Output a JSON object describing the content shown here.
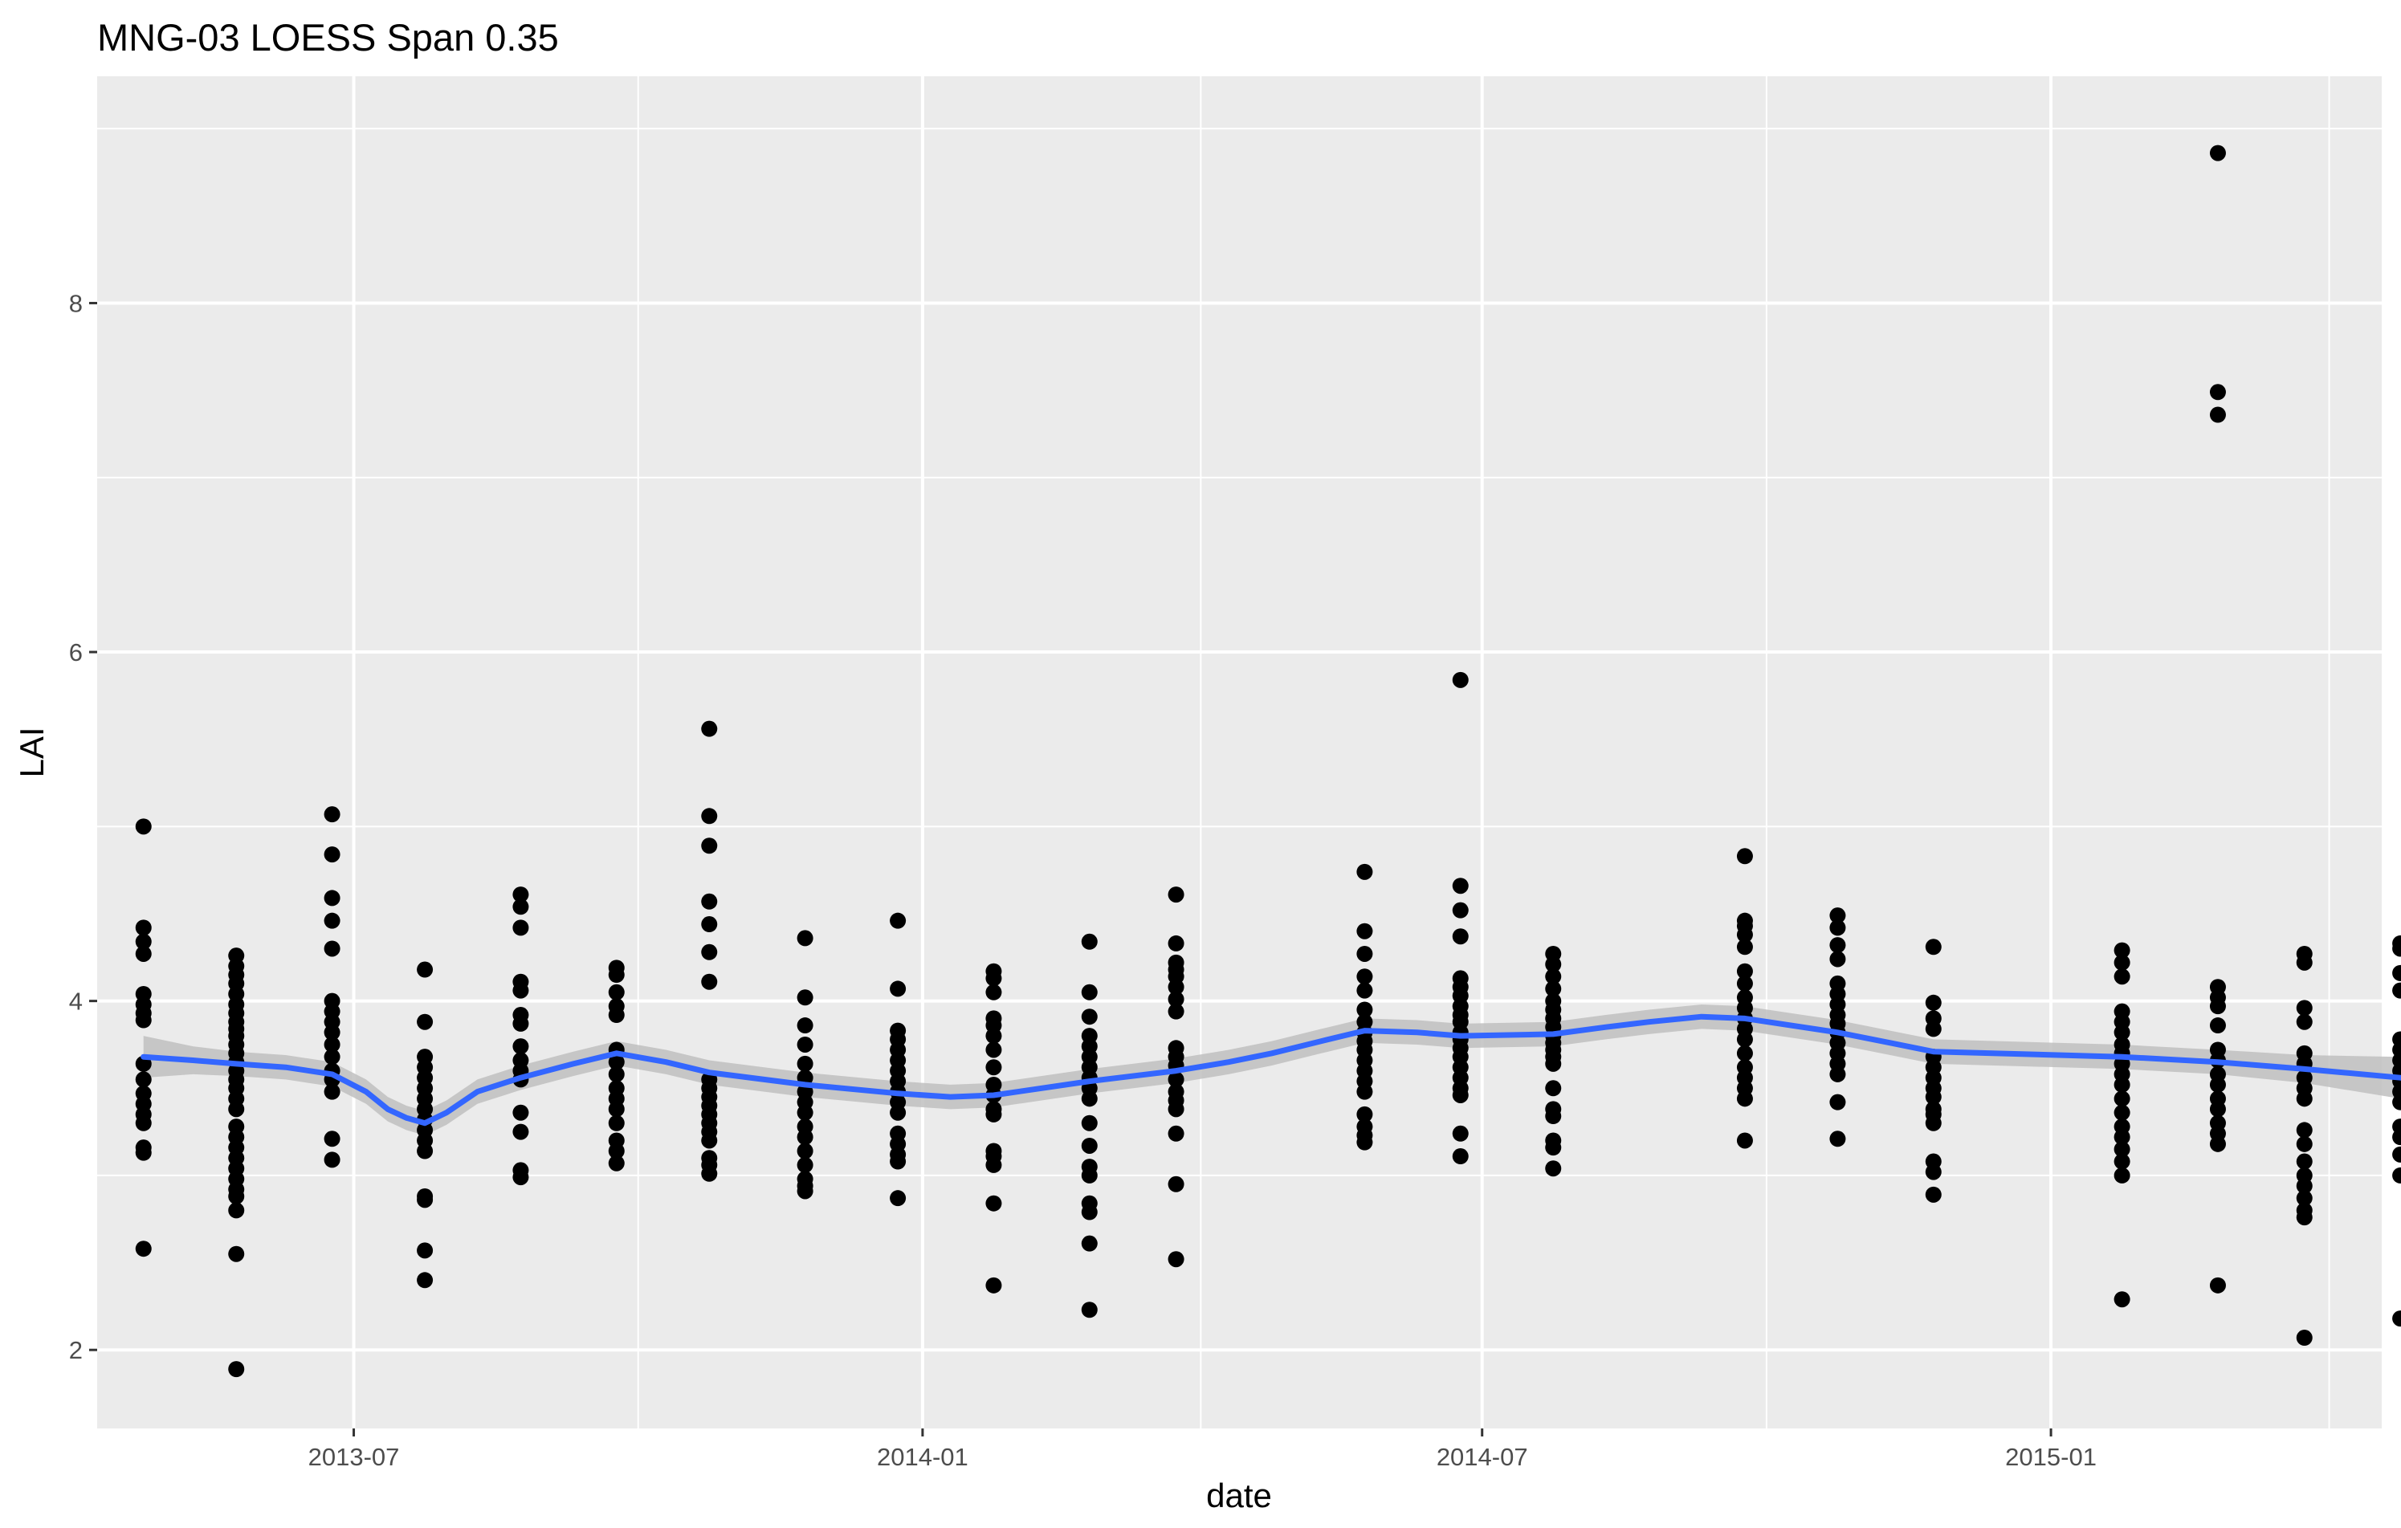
{
  "chart_data": {
    "type": "scatter",
    "title": "MNG-03 LOESS Span 0.35",
    "xlabel": "date",
    "ylabel": "LAI",
    "x_is_date": true,
    "xlim": [
      "2013-04-09",
      "2015-04-18"
    ],
    "ylim": [
      1.55,
      9.3
    ],
    "x_ticks": [
      {
        "value": "2013-07-01",
        "label": "2013-07"
      },
      {
        "value": "2014-01-01",
        "label": "2014-01"
      },
      {
        "value": "2014-07-01",
        "label": "2014-07"
      },
      {
        "value": "2015-01-01",
        "label": "2015-01"
      }
    ],
    "x_minor_ticks": [
      "2013-04-01",
      "2013-10-01",
      "2014-04-01",
      "2014-10-01",
      "2015-04-01"
    ],
    "y_ticks": [
      2,
      4,
      6,
      8
    ],
    "y_minor_ticks": [
      3,
      5,
      7,
      9
    ],
    "grid": true,
    "legend": "none",
    "colors": {
      "panel_background": "#ebebeb",
      "grid_line": "#ffffff",
      "points": "#000000",
      "smooth_line": "#3366ff",
      "confidence_band": "#bfbfbf"
    },
    "series": [
      {
        "kind": "points",
        "points": [
          {
            "x": "2013-04-24",
            "y": [
              5.0,
              4.42,
              4.34,
              4.27,
              4.04,
              3.98,
              3.93,
              3.89,
              3.64,
              3.55,
              3.47,
              3.41,
              3.35,
              3.3,
              3.16,
              3.13,
              2.58
            ]
          },
          {
            "x": "2013-05-24",
            "y": [
              4.26,
              4.2,
              4.15,
              4.1,
              4.04,
              3.98,
              3.93,
              3.88,
              3.84,
              3.8,
              3.75,
              3.7,
              3.65,
              3.6,
              3.55,
              3.5,
              3.44,
              3.38,
              3.28,
              3.22,
              3.16,
              3.1,
              3.04,
              2.98,
              2.92,
              2.88,
              2.8,
              2.55,
              1.89
            ]
          },
          {
            "x": "2013-06-24",
            "y": [
              5.07,
              4.84,
              4.59,
              4.46,
              4.3,
              4.0,
              3.94,
              3.88,
              3.82,
              3.75,
              3.68,
              3.6,
              3.55,
              3.48,
              3.21,
              3.09
            ]
          },
          {
            "x": "2013-07-24",
            "y": [
              4.18,
              3.88,
              3.68,
              3.62,
              3.56,
              3.5,
              3.44,
              3.38,
              3.32,
              3.26,
              3.2,
              3.14,
              2.88,
              2.86,
              2.57,
              2.4
            ]
          },
          {
            "x": "2013-08-24",
            "y": [
              4.61,
              4.54,
              4.42,
              4.11,
              4.06,
              3.92,
              3.87,
              3.74,
              3.66,
              3.6,
              3.55,
              3.36,
              3.25,
              3.03,
              2.99
            ]
          },
          {
            "x": "2013-09-24",
            "y": [
              4.19,
              4.15,
              4.05,
              3.97,
              3.92,
              3.72,
              3.65,
              3.58,
              3.5,
              3.44,
              3.38,
              3.3,
              3.2,
              3.14,
              3.07
            ]
          },
          {
            "x": "2013-10-24",
            "y": [
              5.56,
              5.06,
              4.89,
              4.57,
              4.44,
              4.28,
              4.11,
              3.55,
              3.5,
              3.45,
              3.4,
              3.35,
              3.3,
              3.25,
              3.2,
              3.1,
              3.06,
              3.01
            ]
          },
          {
            "x": "2013-11-24",
            "y": [
              4.36,
              4.02,
              3.86,
              3.75,
              3.64,
              3.56,
              3.48,
              3.42,
              3.36,
              3.28,
              3.22,
              3.14,
              3.06,
              2.98,
              2.94,
              2.91
            ]
          },
          {
            "x": "2013-12-24",
            "y": [
              4.46,
              4.07,
              3.83,
              3.78,
              3.72,
              3.66,
              3.6,
              3.54,
              3.48,
              3.42,
              3.36,
              3.24,
              3.18,
              3.12,
              3.08,
              2.87
            ]
          },
          {
            "x": "2014-01-24",
            "y": [
              4.17,
              4.13,
              4.05,
              3.9,
              3.86,
              3.8,
              3.72,
              3.62,
              3.52,
              3.46,
              3.38,
              3.35,
              3.14,
              3.11,
              3.06,
              2.84,
              2.37
            ]
          },
          {
            "x": "2014-02-24",
            "y": [
              4.34,
              4.05,
              3.91,
              3.8,
              3.74,
              3.68,
              3.62,
              3.56,
              3.5,
              3.44,
              3.3,
              3.17,
              3.05,
              3.0,
              2.84,
              2.79,
              2.61,
              2.23
            ]
          },
          {
            "x": "2014-03-24",
            "y": [
              4.61,
              4.33,
              4.22,
              4.18,
              4.14,
              4.08,
              4.01,
              3.94,
              3.73,
              3.68,
              3.63,
              3.55,
              3.48,
              3.43,
              3.38,
              3.24,
              2.95,
              2.52
            ]
          },
          {
            "x": "2014-05-24",
            "y": [
              4.74,
              4.4,
              4.27,
              4.14,
              4.06,
              3.95,
              3.88,
              3.82,
              3.77,
              3.72,
              3.66,
              3.6,
              3.54,
              3.48,
              3.35,
              3.28,
              3.23,
              3.19
            ]
          },
          {
            "x": "2014-06-24",
            "y": [
              5.84,
              4.66,
              4.52,
              4.37,
              4.13,
              4.08,
              4.03,
              3.97,
              3.92,
              3.88,
              3.82,
              3.78,
              3.73,
              3.68,
              3.62,
              3.56,
              3.5,
              3.46,
              3.24,
              3.11
            ]
          },
          {
            "x": "2014-07-24",
            "y": [
              4.27,
              4.21,
              4.14,
              4.07,
              4.0,
              3.95,
              3.9,
              3.85,
              3.8,
              3.76,
              3.72,
              3.68,
              3.64,
              3.5,
              3.38,
              3.34,
              3.2,
              3.16,
              3.04
            ]
          },
          {
            "x": "2014-09-24",
            "y": [
              4.83,
              4.46,
              4.43,
              4.38,
              4.31,
              4.17,
              4.1,
              4.02,
              3.96,
              3.9,
              3.84,
              3.78,
              3.7,
              3.62,
              3.56,
              3.5,
              3.44,
              3.2
            ]
          },
          {
            "x": "2014-10-24",
            "y": [
              4.49,
              4.42,
              4.32,
              4.24,
              4.1,
              4.04,
              3.98,
              3.92,
              3.87,
              3.82,
              3.76,
              3.7,
              3.64,
              3.58,
              3.42,
              3.21
            ]
          },
          {
            "x": "2014-11-24",
            "y": [
              4.31,
              3.99,
              3.9,
              3.84,
              3.68,
              3.62,
              3.56,
              3.5,
              3.45,
              3.38,
              3.35,
              3.3,
              3.08,
              3.02,
              2.89
            ]
          },
          {
            "x": "2015-01-24",
            "y": [
              4.29,
              4.22,
              4.14,
              3.94,
              3.88,
              3.82,
              3.75,
              3.7,
              3.64,
              3.58,
              3.52,
              3.44,
              3.36,
              3.28,
              3.22,
              3.15,
              3.08,
              3.0,
              2.29
            ]
          },
          {
            "x": "2015-02-24",
            "y": [
              8.86,
              7.49,
              7.36,
              4.08,
              4.02,
              3.97,
              3.86,
              3.72,
              3.66,
              3.58,
              3.52,
              3.44,
              3.38,
              3.3,
              3.24,
              3.18,
              2.37
            ]
          },
          {
            "x": "2015-03-24",
            "y": [
              4.27,
              4.22,
              3.96,
              3.88,
              3.7,
              3.64,
              3.56,
              3.5,
              3.44,
              3.26,
              3.18,
              3.08,
              3.0,
              2.94,
              2.87,
              2.8,
              2.76,
              2.07
            ]
          },
          {
            "x": "2015-04-24",
            "y": [
              4.33,
              4.3,
              4.16,
              4.06,
              3.78,
              3.72,
              3.66,
              3.6,
              3.54,
              3.48,
              3.42,
              3.28,
              3.22,
              3.12,
              3.0,
              2.18
            ]
          }
        ]
      },
      {
        "kind": "smooth",
        "x": [
          "2013-04-24",
          "2013-05-10",
          "2013-05-24",
          "2013-06-09",
          "2013-06-24",
          "2013-07-05",
          "2013-07-12",
          "2013-07-18",
          "2013-07-24",
          "2013-07-31",
          "2013-08-10",
          "2013-08-24",
          "2013-09-10",
          "2013-09-24",
          "2013-10-10",
          "2013-10-24",
          "2013-11-24",
          "2013-12-24",
          "2014-01-10",
          "2014-01-24",
          "2014-02-24",
          "2014-03-24",
          "2014-04-10",
          "2014-04-24",
          "2014-05-10",
          "2014-05-24",
          "2014-06-10",
          "2014-06-24",
          "2014-07-24",
          "2014-08-10",
          "2014-08-24",
          "2014-09-10",
          "2014-09-24",
          "2014-10-24",
          "2014-11-10",
          "2014-11-24",
          "2015-01-24",
          "2015-02-24",
          "2015-03-24",
          "2015-04-24"
        ],
        "y": [
          3.68,
          3.66,
          3.64,
          3.62,
          3.58,
          3.48,
          3.38,
          3.33,
          3.3,
          3.36,
          3.48,
          3.56,
          3.64,
          3.7,
          3.65,
          3.59,
          3.52,
          3.47,
          3.45,
          3.46,
          3.54,
          3.6,
          3.65,
          3.7,
          3.77,
          3.83,
          3.82,
          3.8,
          3.81,
          3.85,
          3.88,
          3.91,
          3.9,
          3.82,
          3.76,
          3.71,
          3.68,
          3.65,
          3.61,
          3.56
        ],
        "ci_halfwidth": [
          0.12,
          0.08,
          0.07,
          0.07,
          0.07,
          0.07,
          0.07,
          0.07,
          0.07,
          0.07,
          0.07,
          0.07,
          0.07,
          0.07,
          0.07,
          0.07,
          0.07,
          0.07,
          0.07,
          0.07,
          0.07,
          0.07,
          0.07,
          0.07,
          0.07,
          0.07,
          0.07,
          0.07,
          0.07,
          0.07,
          0.07,
          0.07,
          0.07,
          0.07,
          0.07,
          0.07,
          0.07,
          0.07,
          0.08,
          0.12
        ]
      }
    ]
  }
}
